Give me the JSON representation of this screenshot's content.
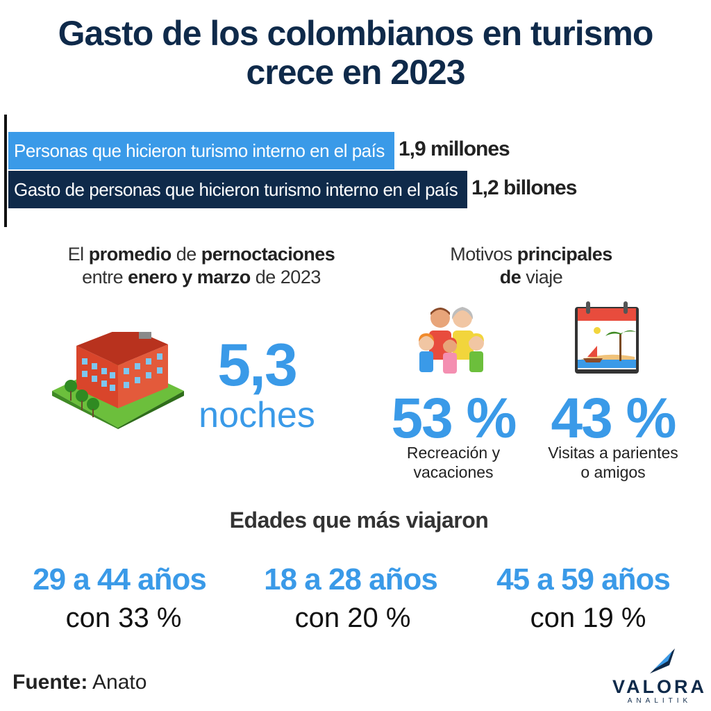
{
  "title_line1": "Gasto de los colombianos en turismo",
  "title_line2": "crece en 2023",
  "colors": {
    "navy": "#0f2a4a",
    "blue": "#3a9ae8",
    "bar_primary": "#3a9ae8",
    "bar_secondary": "#0f2a4a"
  },
  "chart_data": {
    "type": "bar",
    "orientation": "horizontal",
    "categories": [
      "Personas que hicieron turismo interno en el país",
      "Gasto de personas que hicieron turismo interno en el país"
    ],
    "values": [
      1.9,
      1.2
    ],
    "value_labels": [
      "1,9 millones",
      "1,2 billones"
    ],
    "units": [
      "millones",
      "billones"
    ]
  },
  "nights": {
    "heading_p1": "El ",
    "heading_b1": "promedio",
    "heading_p2": " de ",
    "heading_b2": "pernoctaciones",
    "heading_p3": "entre ",
    "heading_b3": "enero y marzo",
    "heading_p4": " de 2023",
    "value": "5,3",
    "unit": "noches",
    "icon": "hotel-icon"
  },
  "motives": {
    "heading_p1": "Motivos ",
    "heading_b1": "principales",
    "heading_b2": "de",
    "heading_p2": " viaje",
    "items": [
      {
        "value": "53 %",
        "label_line1": "Recreación y",
        "label_line2": "vacaciones",
        "icon": "family-icon"
      },
      {
        "value": "43 %",
        "label_line1": "Visitas a parientes",
        "label_line2": "o amigos",
        "icon": "beach-calendar-icon"
      }
    ]
  },
  "ages": {
    "heading": "Edades que más viajaron",
    "items": [
      {
        "range": "29 a 44 años",
        "share": "con 33 %"
      },
      {
        "range": "18 a 28 años",
        "share": "con 20 %"
      },
      {
        "range": "45 a 59 años",
        "share": "con 19 %"
      }
    ]
  },
  "source": {
    "label": "Fuente:",
    "value": " Anato"
  },
  "brand": {
    "name": "VALORA",
    "sub": "ANALITIK"
  }
}
